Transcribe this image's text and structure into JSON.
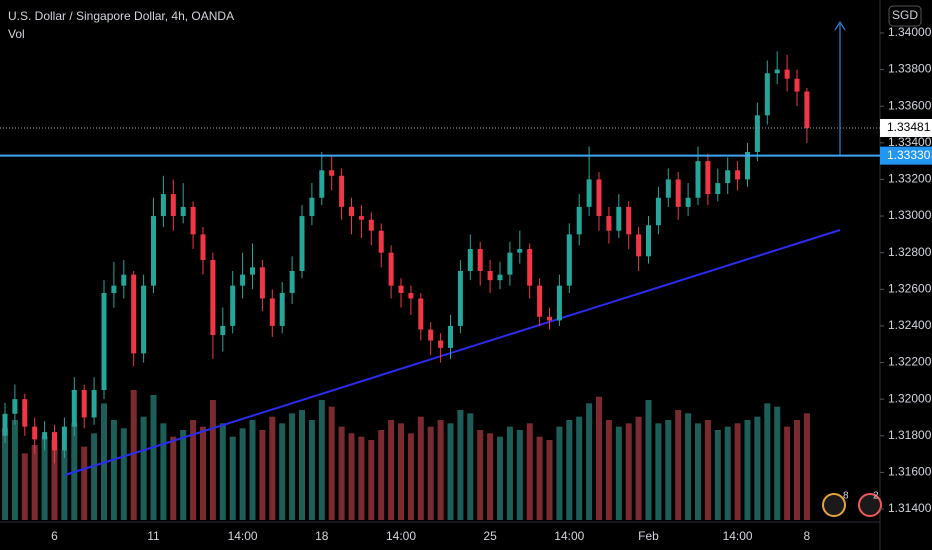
{
  "chart_data": {
    "type": "candlestick",
    "title": "U.S. Dollar / Singapore Dollar, 4h, OANDA",
    "indicator": "Vol",
    "currency": "SGD",
    "categories": [
      null,
      null,
      null,
      null,
      null,
      "6",
      null,
      null,
      null,
      null,
      null,
      null,
      null,
      null,
      null,
      "11",
      null,
      null,
      null,
      null,
      null,
      null,
      null,
      null,
      "14:00",
      null,
      null,
      null,
      null,
      null,
      null,
      null,
      "18",
      null,
      null,
      null,
      null,
      null,
      null,
      null,
      "14:00",
      null,
      null,
      null,
      null,
      null,
      null,
      null,
      null,
      "25",
      null,
      null,
      null,
      null,
      null,
      null,
      null,
      "14:00",
      null,
      null,
      null,
      null,
      null,
      null,
      null,
      "Feb",
      null,
      null,
      null,
      null,
      null,
      null,
      null,
      null,
      "14:00",
      null,
      null,
      null,
      null,
      null,
      null,
      "8"
    ],
    "open": [
      1.318,
      1.3192,
      1.32,
      1.3185,
      1.3178,
      1.3182,
      1.3172,
      1.3185,
      1.3205,
      1.319,
      1.3205,
      1.3258,
      1.3262,
      1.3268,
      1.3225,
      1.3262,
      1.33,
      1.3312,
      1.33,
      1.3305,
      1.329,
      1.3276,
      1.3235,
      1.324,
      1.3262,
      1.3268,
      1.3272,
      1.3255,
      1.324,
      1.3258,
      1.327,
      1.33,
      1.331,
      1.3325,
      1.3322,
      1.3305,
      1.33,
      1.3298,
      1.3292,
      1.328,
      1.3262,
      1.3258,
      1.3255,
      1.3238,
      1.3232,
      1.3228,
      1.324,
      1.327,
      1.3282,
      1.327,
      1.3265,
      1.3268,
      1.328,
      1.3282,
      1.3262,
      1.3245,
      1.3243,
      1.3262,
      1.329,
      1.3305,
      1.332,
      1.33,
      1.3292,
      1.3305,
      1.329,
      1.3278,
      1.3295,
      1.331,
      1.332,
      1.3305,
      1.331,
      1.333,
      1.3312,
      1.3318,
      1.3325,
      1.332,
      1.3335,
      1.3355,
      1.3378,
      1.338,
      1.3375,
      1.3368
    ],
    "high": [
      1.3198,
      1.3208,
      1.3203,
      1.319,
      1.3188,
      1.3186,
      1.319,
      1.3212,
      1.3208,
      1.3212,
      1.3265,
      1.3275,
      1.3276,
      1.327,
      1.3268,
      1.331,
      1.3322,
      1.332,
      1.3318,
      1.3308,
      1.3294,
      1.328,
      1.325,
      1.327,
      1.328,
      1.3285,
      1.3276,
      1.326,
      1.3264,
      1.3278,
      1.3306,
      1.3318,
      1.3335,
      1.3333,
      1.3326,
      1.331,
      1.3306,
      1.3302,
      1.3296,
      1.3284,
      1.3266,
      1.3262,
      1.3258,
      1.3242,
      1.3236,
      1.3246,
      1.3276,
      1.329,
      1.3286,
      1.3276,
      1.3275,
      1.3286,
      1.3292,
      1.3285,
      1.3266,
      1.325,
      1.3268,
      1.3296,
      1.3312,
      1.3338,
      1.3324,
      1.3305,
      1.3312,
      1.3308,
      1.3294,
      1.33,
      1.3316,
      1.3326,
      1.3324,
      1.3318,
      1.3338,
      1.3334,
      1.3326,
      1.3332,
      1.333,
      1.334,
      1.3362,
      1.3385,
      1.339,
      1.3388,
      1.338,
      1.337
    ],
    "low": [
      1.3176,
      1.3186,
      1.318,
      1.317,
      1.3172,
      1.3165,
      1.3168,
      1.318,
      1.3184,
      1.3186,
      1.32,
      1.325,
      1.3255,
      1.3218,
      1.322,
      1.3258,
      1.3294,
      1.3292,
      1.3296,
      1.3282,
      1.3268,
      1.3222,
      1.3226,
      1.3236,
      1.3255,
      1.326,
      1.3248,
      1.3234,
      1.3236,
      1.3252,
      1.3266,
      1.3295,
      1.3306,
      1.3314,
      1.3298,
      1.329,
      1.3288,
      1.3284,
      1.3272,
      1.3255,
      1.325,
      1.3246,
      1.3232,
      1.3224,
      1.322,
      1.3222,
      1.3236,
      1.3265,
      1.3262,
      1.3258,
      1.326,
      1.3262,
      1.3274,
      1.3255,
      1.324,
      1.3238,
      1.324,
      1.3258,
      1.3284,
      1.33,
      1.3292,
      1.3285,
      1.3288,
      1.3282,
      1.327,
      1.3274,
      1.329,
      1.3305,
      1.3298,
      1.33,
      1.3306,
      1.3306,
      1.3308,
      1.3312,
      1.3314,
      1.3316,
      1.333,
      1.335,
      1.3372,
      1.3368,
      1.336,
      1.334
    ],
    "close": [
      1.3192,
      1.32,
      1.3185,
      1.3178,
      1.3182,
      1.3172,
      1.3185,
      1.3205,
      1.319,
      1.3205,
      1.3258,
      1.3262,
      1.3268,
      1.3225,
      1.3262,
      1.33,
      1.3312,
      1.33,
      1.3305,
      1.329,
      1.3276,
      1.3235,
      1.324,
      1.3262,
      1.3268,
      1.3272,
      1.3255,
      1.324,
      1.3258,
      1.327,
      1.33,
      1.331,
      1.3325,
      1.3322,
      1.3305,
      1.33,
      1.3298,
      1.3292,
      1.328,
      1.3262,
      1.3258,
      1.3255,
      1.3238,
      1.3232,
      1.3228,
      1.324,
      1.327,
      1.3282,
      1.327,
      1.3265,
      1.3268,
      1.328,
      1.3282,
      1.3262,
      1.3245,
      1.3243,
      1.3262,
      1.329,
      1.3305,
      1.332,
      1.33,
      1.3292,
      1.3305,
      1.329,
      1.3278,
      1.3295,
      1.331,
      1.332,
      1.3305,
      1.331,
      1.333,
      1.3312,
      1.3318,
      1.3325,
      1.332,
      1.3335,
      1.3355,
      1.3378,
      1.338,
      1.3375,
      1.3368,
      1.3348
    ],
    "volume": [
      55,
      60,
      40,
      45,
      50,
      48,
      42,
      58,
      44,
      52,
      70,
      60,
      55,
      78,
      62,
      75,
      58,
      50,
      54,
      60,
      56,
      72,
      58,
      50,
      55,
      60,
      54,
      62,
      58,
      64,
      66,
      60,
      72,
      68,
      56,
      52,
      50,
      48,
      54,
      60,
      58,
      52,
      62,
      56,
      60,
      58,
      66,
      64,
      54,
      52,
      50,
      56,
      54,
      58,
      50,
      48,
      56,
      60,
      62,
      70,
      74,
      60,
      56,
      58,
      62,
      72,
      58,
      60,
      66,
      64,
      58,
      60,
      54,
      56,
      58,
      60,
      62,
      70,
      68,
      56,
      60,
      64
    ],
    "ylim": [
      1.3134,
      1.3418
    ],
    "yticks": [
      {
        "value": 1.314,
        "label": "1.31400"
      },
      {
        "value": 1.316,
        "label": "1.31600"
      },
      {
        "value": 1.318,
        "label": "1.31800"
      },
      {
        "value": 1.32,
        "label": "1.32000"
      },
      {
        "value": 1.322,
        "label": "1.32200"
      },
      {
        "value": 1.324,
        "label": "1.32400"
      },
      {
        "value": 1.326,
        "label": "1.32600"
      },
      {
        "value": 1.328,
        "label": "1.32800"
      },
      {
        "value": 1.33,
        "label": "1.33000"
      },
      {
        "value": 1.332,
        "label": "1.33200"
      },
      {
        "value": 1.334,
        "label": "1.33400"
      },
      {
        "value": 1.336,
        "label": "1.33600"
      },
      {
        "value": 1.338,
        "label": "1.33800"
      },
      {
        "value": 1.34,
        "label": "1.34000"
      }
    ],
    "price_labels": [
      {
        "value": 1.33481,
        "label": "1.33481"
      },
      {
        "value": 1.3333,
        "label": "1.33330"
      }
    ],
    "colors": {
      "up": "#26a69a",
      "down": "#f23645",
      "up_volume": "#1d5e58",
      "down_volume": "#7b2a30"
    },
    "grid": false,
    "events": [
      "8",
      "2"
    ]
  }
}
